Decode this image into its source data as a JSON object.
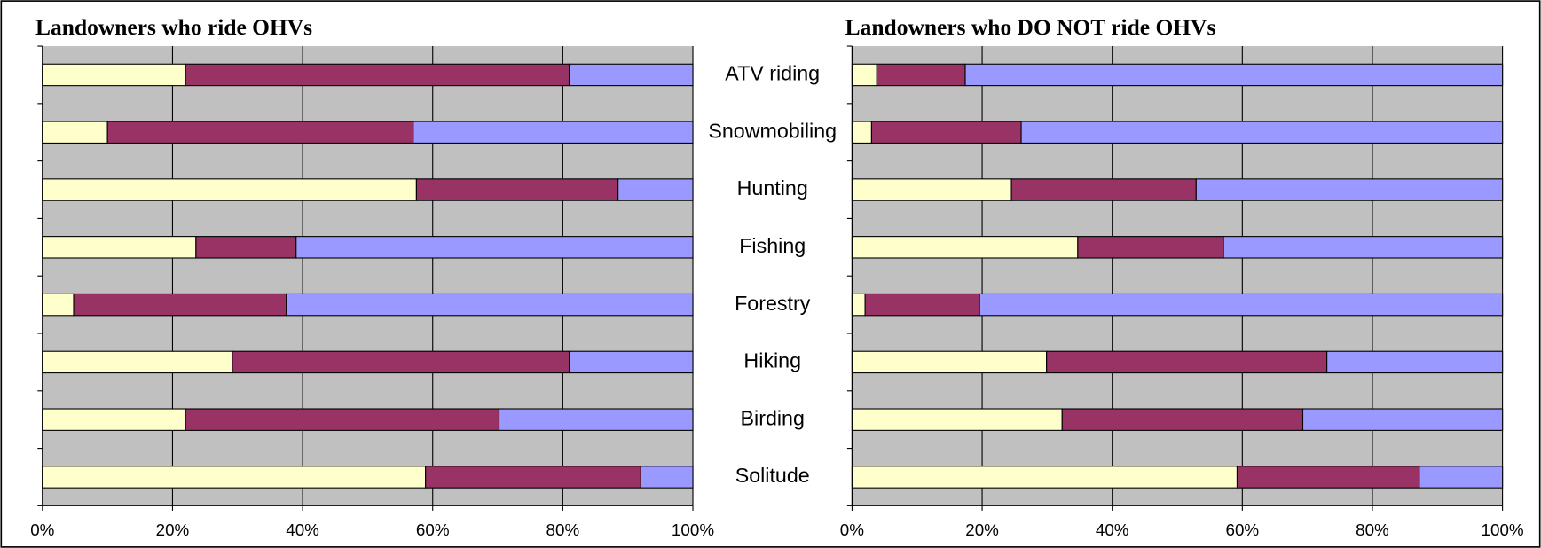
{
  "chart_data": [
    {
      "type": "bar",
      "orientation": "horizontal",
      "stacked": true,
      "title": "Landowners who ride OHVs",
      "categories": [
        "ATV riding",
        "Snowmobiling",
        "Hunting",
        "Fishing",
        "Forestry",
        "Hiking",
        "Birding",
        "Solitude"
      ],
      "series": [
        {
          "color": "#ffffcc",
          "values": [
            22,
            10,
            57.5,
            23.6,
            4.8,
            29.2,
            22,
            58.9
          ]
        },
        {
          "color": "#993366",
          "values": [
            59,
            47,
            31,
            15.4,
            32.7,
            51.8,
            48.2,
            33.1
          ]
        },
        {
          "color": "#9999ff",
          "values": [
            19,
            43,
            11.5,
            61,
            62.5,
            19,
            29.8,
            8
          ]
        }
      ],
      "xlim": [
        0,
        100
      ],
      "xticks": [
        {
          "value": 0,
          "label": "0%"
        },
        {
          "value": 20,
          "label": "20%"
        },
        {
          "value": 40,
          "label": "40%"
        },
        {
          "value": 60,
          "label": "60%"
        },
        {
          "value": 80,
          "label": "80%"
        },
        {
          "value": 100,
          "label": "100%"
        }
      ],
      "grid": true
    },
    {
      "type": "bar",
      "orientation": "horizontal",
      "stacked": true,
      "title": "Landowners who DO NOT ride OHVs",
      "series": [
        {
          "color": "#ffffcc",
          "values": [
            3.8,
            3,
            24.5,
            34.7,
            2,
            29.9,
            32.3,
            59.2
          ]
        },
        {
          "color": "#993366",
          "values": [
            13.6,
            23,
            28.4,
            22.4,
            17.6,
            43.1,
            37,
            28
          ]
        },
        {
          "color": "#9999ff",
          "values": [
            82.6,
            74,
            47.1,
            42.9,
            80.4,
            27,
            30.7,
            12.8
          ]
        }
      ],
      "xlim": [
        0,
        100
      ],
      "xticks": [
        {
          "value": 0,
          "label": "0%"
        },
        {
          "value": 20,
          "label": "20%"
        },
        {
          "value": 40,
          "label": "40%"
        },
        {
          "value": 60,
          "label": "60%"
        },
        {
          "value": 80,
          "label": "80%"
        },
        {
          "value": 100,
          "label": "100%"
        }
      ],
      "grid": true
    }
  ]
}
